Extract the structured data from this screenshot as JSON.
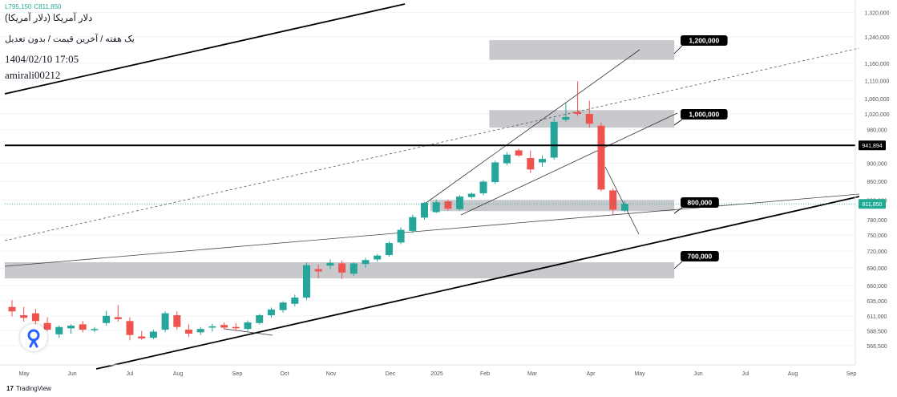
{
  "header": {
    "ticker": "دلار آمریکا (دلار آمریکا)",
    "subtitle": "یک هفته / آخرین قیمت / بدون تعدیل",
    "timestamp": "1404/02/10 17:05",
    "author": "amirali00212",
    "ohlc": [
      "L795,150",
      "C811,850"
    ]
  },
  "footer": {
    "brand_mark": "17",
    "brand_name": "TradingView"
  },
  "colors": {
    "up": "#26a69a",
    "down": "#ef5350",
    "zone": "#c5c6ca",
    "price_line": "#22ab94",
    "level": "#000000"
  },
  "chart_data": {
    "type": "candlestick",
    "timeframe": "1W",
    "x_axis_labels": [
      "May",
      "Jun",
      "Jul",
      "Aug",
      "Sep",
      "Oct",
      "Nov",
      "Dec",
      "2025",
      "Feb",
      "Mar",
      "Apr",
      "May",
      "Jun",
      "Jul",
      "Aug",
      "Sep"
    ],
    "y_axis_ticks": [
      "1,320,000",
      "1,240,000",
      "1,160,000",
      "1,110,000",
      "1,060,000",
      "1,020,000",
      "980,000",
      "900,000",
      "860,000",
      "820,000",
      "780,000",
      "750,000",
      "720,000",
      "690,000",
      "660,000",
      "635,000",
      "611,000",
      "588,500",
      "566,500"
    ],
    "ylim": [
      545000,
      1340000
    ],
    "y_scale": "log",
    "candles": [
      {
        "o": 625000,
        "h": 636000,
        "l": 610000,
        "c": 618000
      },
      {
        "o": 612000,
        "h": 625000,
        "l": 602000,
        "c": 608000
      },
      {
        "o": 615000,
        "h": 622000,
        "l": 596000,
        "c": 603000
      },
      {
        "o": 600000,
        "h": 609000,
        "l": 588000,
        "c": 590000
      },
      {
        "o": 583000,
        "h": 596000,
        "l": 578000,
        "c": 594000
      },
      {
        "o": 592000,
        "h": 598000,
        "l": 584000,
        "c": 596000
      },
      {
        "o": 598000,
        "h": 603000,
        "l": 586000,
        "c": 590000
      },
      {
        "o": 590000,
        "h": 594000,
        "l": 586000,
        "c": 591000
      },
      {
        "o": 600000,
        "h": 619000,
        "l": 596000,
        "c": 611000
      },
      {
        "o": 609000,
        "h": 628000,
        "l": 602000,
        "c": 606000
      },
      {
        "o": 603000,
        "h": 609000,
        "l": 574000,
        "c": 582000
      },
      {
        "o": 580000,
        "h": 588000,
        "l": 575000,
        "c": 577000
      },
      {
        "o": 578000,
        "h": 590000,
        "l": 576000,
        "c": 587000
      },
      {
        "o": 590000,
        "h": 618000,
        "l": 586000,
        "c": 615000
      },
      {
        "o": 612000,
        "h": 618000,
        "l": 590000,
        "c": 594000
      },
      {
        "o": 590000,
        "h": 598000,
        "l": 579000,
        "c": 584000
      },
      {
        "o": 586000,
        "h": 594000,
        "l": 582000,
        "c": 591000
      },
      {
        "o": 593000,
        "h": 599000,
        "l": 587000,
        "c": 595000
      },
      {
        "o": 597000,
        "h": 601000,
        "l": 590000,
        "c": 593000
      },
      {
        "o": 594000,
        "h": 600000,
        "l": 588000,
        "c": 592000
      },
      {
        "o": 591000,
        "h": 604000,
        "l": 588000,
        "c": 601000
      },
      {
        "o": 600000,
        "h": 614000,
        "l": 598000,
        "c": 612000
      },
      {
        "o": 612000,
        "h": 624000,
        "l": 608000,
        "c": 621000
      },
      {
        "o": 620000,
        "h": 634000,
        "l": 616000,
        "c": 632000
      },
      {
        "o": 630000,
        "h": 645000,
        "l": 626000,
        "c": 640000
      },
      {
        "o": 640000,
        "h": 700000,
        "l": 636000,
        "c": 695000
      },
      {
        "o": 688000,
        "h": 696000,
        "l": 672000,
        "c": 684000
      },
      {
        "o": 694000,
        "h": 705000,
        "l": 688000,
        "c": 699000
      },
      {
        "o": 698000,
        "h": 703000,
        "l": 671000,
        "c": 682000
      },
      {
        "o": 680000,
        "h": 700000,
        "l": 676000,
        "c": 698000
      },
      {
        "o": 697000,
        "h": 708000,
        "l": 690000,
        "c": 704000
      },
      {
        "o": 705000,
        "h": 715000,
        "l": 701000,
        "c": 712000
      },
      {
        "o": 713000,
        "h": 738000,
        "l": 710000,
        "c": 735000
      },
      {
        "o": 736000,
        "h": 765000,
        "l": 733000,
        "c": 760000
      },
      {
        "o": 758000,
        "h": 790000,
        "l": 754000,
        "c": 785000
      },
      {
        "o": 784000,
        "h": 816000,
        "l": 780000,
        "c": 814000
      },
      {
        "o": 795000,
        "h": 821000,
        "l": 793000,
        "c": 815000
      },
      {
        "o": 817000,
        "h": 821000,
        "l": 798000,
        "c": 802000
      },
      {
        "o": 801000,
        "h": 830000,
        "l": 798000,
        "c": 827000
      },
      {
        "o": 826000,
        "h": 836000,
        "l": 823000,
        "c": 833000
      },
      {
        "o": 834000,
        "h": 862000,
        "l": 830000,
        "c": 859000
      },
      {
        "o": 858000,
        "h": 906000,
        "l": 854000,
        "c": 902000
      },
      {
        "o": 900000,
        "h": 926000,
        "l": 895000,
        "c": 920000
      },
      {
        "o": 930000,
        "h": 934000,
        "l": 915000,
        "c": 918000
      },
      {
        "o": 912000,
        "h": 930000,
        "l": 878000,
        "c": 886000
      },
      {
        "o": 902000,
        "h": 918000,
        "l": 892000,
        "c": 910000
      },
      {
        "o": 913000,
        "h": 1010000,
        "l": 908000,
        "c": 1000000
      },
      {
        "o": 1005000,
        "h": 1050000,
        "l": 1000000,
        "c": 1012000
      },
      {
        "o": 1025000,
        "h": 1108000,
        "l": 1015000,
        "c": 1020000
      },
      {
        "o": 1020000,
        "h": 1055000,
        "l": 985000,
        "c": 995000
      },
      {
        "o": 990000,
        "h": 998000,
        "l": 838000,
        "c": 842000
      },
      {
        "o": 840000,
        "h": 845000,
        "l": 790000,
        "c": 800000
      },
      {
        "o": 798000,
        "h": 818000,
        "l": 795150,
        "c": 811850
      }
    ],
    "last_price": "811,850",
    "horizontal_level": "941,894",
    "zone_labels": [
      "1,200,000",
      "1,000,000",
      "800,000",
      "700,000"
    ]
  }
}
